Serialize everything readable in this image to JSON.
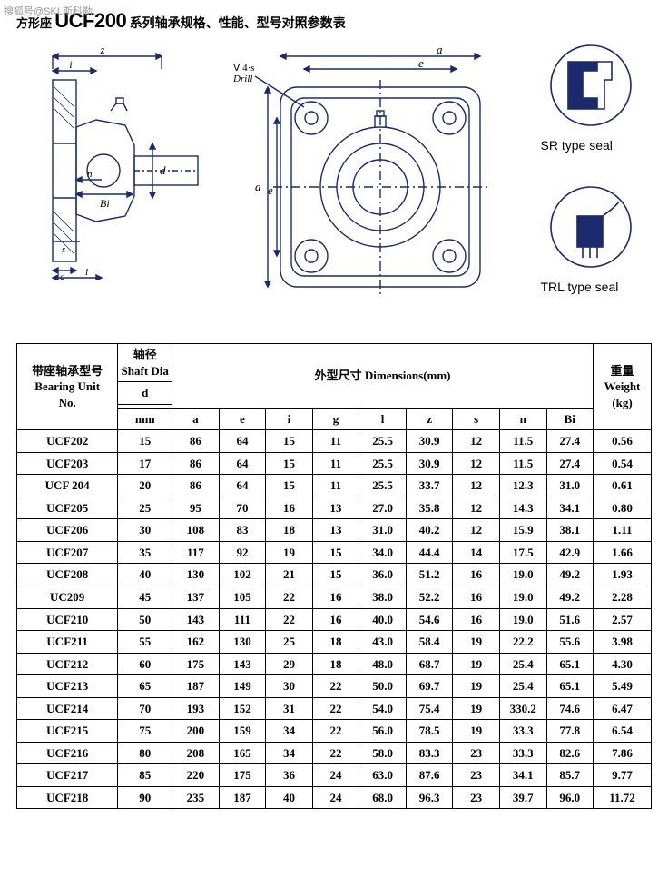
{
  "watermark": "搜狐号@SKL斯科勒",
  "title": {
    "prefix": "方形座 ",
    "model": "UCF200",
    "suffix": " 系列轴承规格、性能、型号对照参数表"
  },
  "diagrams": {
    "side_labels": {
      "z": "z",
      "i": "i",
      "n": "n",
      "Bi": "Bi",
      "d": "d",
      "s": "s",
      "g": "g",
      "l": "l"
    },
    "front_labels": {
      "drill": "∇ 4·s\nDrill",
      "a": "a",
      "e": "e"
    },
    "seal1": {
      "label": "SR type seal"
    },
    "seal2": {
      "label": "TRL type seal"
    },
    "stroke": "#1a2a6c",
    "fill_hatch": "#1a2a6c"
  },
  "table": {
    "header": {
      "model": "带座轴承型号\nBearing Unit\nNo.",
      "dia_top": "轴径\nShaft Dia",
      "dia_d": "d",
      "dia_unit": "mm",
      "dims_label": "外型尺寸  Dimensions(mm)",
      "weight": "重量\nWeight\n(kg)",
      "cols": [
        "a",
        "e",
        "i",
        "g",
        "l",
        "z",
        "s",
        "n",
        "Bi"
      ]
    },
    "rows": [
      {
        "model": "UCF202",
        "d": "15",
        "a": "86",
        "e": "64",
        "i": "15",
        "g": "11",
        "l": "25.5",
        "z": "30.9",
        "s": "12",
        "n": "11.5",
        "Bi": "27.4",
        "wt": "0.56"
      },
      {
        "model": "UCF203",
        "d": "17",
        "a": "86",
        "e": "64",
        "i": "15",
        "g": "11",
        "l": "25.5",
        "z": "30.9",
        "s": "12",
        "n": "11.5",
        "Bi": "27.4",
        "wt": "0.54"
      },
      {
        "model": "UCF 204",
        "d": "20",
        "a": "86",
        "e": "64",
        "i": "15",
        "g": "11",
        "l": "25.5",
        "z": "33.7",
        "s": "12",
        "n": "12.3",
        "Bi": "31.0",
        "wt": "0.61"
      },
      {
        "model": "UCF205",
        "d": "25",
        "a": "95",
        "e": "70",
        "i": "16",
        "g": "13",
        "l": "27.0",
        "z": "35.8",
        "s": "12",
        "n": "14.3",
        "Bi": "34.1",
        "wt": "0.80"
      },
      {
        "model": "UCF206",
        "d": "30",
        "a": "108",
        "e": "83",
        "i": "18",
        "g": "13",
        "l": "31.0",
        "z": "40.2",
        "s": "12",
        "n": "15.9",
        "Bi": "38.1",
        "wt": "1.11"
      },
      {
        "model": "UCF207",
        "d": "35",
        "a": "117",
        "e": "92",
        "i": "19",
        "g": "15",
        "l": "34.0",
        "z": "44.4",
        "s": "14",
        "n": "17.5",
        "Bi": "42.9",
        "wt": "1.66"
      },
      {
        "model": "UCF208",
        "d": "40",
        "a": "130",
        "e": "102",
        "i": "21",
        "g": "15",
        "l": "36.0",
        "z": "51.2",
        "s": "16",
        "n": "19.0",
        "Bi": "49.2",
        "wt": "1.93"
      },
      {
        "model": "UC209",
        "d": "45",
        "a": "137",
        "e": "105",
        "i": "22",
        "g": "16",
        "l": "38.0",
        "z": "52.2",
        "s": "16",
        "n": "19.0",
        "Bi": "49.2",
        "wt": "2.28"
      },
      {
        "model": "UCF210",
        "d": "50",
        "a": "143",
        "e": "111",
        "i": "22",
        "g": "16",
        "l": "40.0",
        "z": "54.6",
        "s": "16",
        "n": "19.0",
        "Bi": "51.6",
        "wt": "2.57"
      },
      {
        "model": "UCF211",
        "d": "55",
        "a": "162",
        "e": "130",
        "i": "25",
        "g": "18",
        "l": "43.0",
        "z": "58.4",
        "s": "19",
        "n": "22.2",
        "Bi": "55.6",
        "wt": "3.98"
      },
      {
        "model": "UCF212",
        "d": "60",
        "a": "175",
        "e": "143",
        "i": "29",
        "g": "18",
        "l": "48.0",
        "z": "68.7",
        "s": "19",
        "n": "25.4",
        "Bi": "65.1",
        "wt": "4.30"
      },
      {
        "model": "UCF213",
        "d": "65",
        "a": "187",
        "e": "149",
        "i": "30",
        "g": "22",
        "l": "50.0",
        "z": "69.7",
        "s": "19",
        "n": "25.4",
        "Bi": "65.1",
        "wt": "5.49"
      },
      {
        "model": "UCF214",
        "d": "70",
        "a": "193",
        "e": "152",
        "i": "31",
        "g": "22",
        "l": "54.0",
        "z": "75.4",
        "s": "19",
        "n": "330.2",
        "Bi": "74.6",
        "wt": "6.47"
      },
      {
        "model": "UCF215",
        "d": "75",
        "a": "200",
        "e": "159",
        "i": "34",
        "g": "22",
        "l": "56.0",
        "z": "78.5",
        "s": "19",
        "n": "33.3",
        "Bi": "77.8",
        "wt": "6.54"
      },
      {
        "model": "UCF216",
        "d": "80",
        "a": "208",
        "e": "165",
        "i": "34",
        "g": "22",
        "l": "58.0",
        "z": "83.3",
        "s": "23",
        "n": "33.3",
        "Bi": "82.6",
        "wt": "7.86"
      },
      {
        "model": "UCF217",
        "d": "85",
        "a": "220",
        "e": "175",
        "i": "36",
        "g": "24",
        "l": "63.0",
        "z": "87.6",
        "s": "23",
        "n": "34.1",
        "Bi": "85.7",
        "wt": "9.77"
      },
      {
        "model": "UCF218",
        "d": "90",
        "a": "235",
        "e": "187",
        "i": "40",
        "g": "24",
        "l": "68.0",
        "z": "96.3",
        "s": "23",
        "n": "39.7",
        "Bi": "96.0",
        "wt": "11.72"
      }
    ]
  }
}
